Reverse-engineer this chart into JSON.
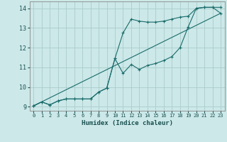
{
  "xlabel": "Humidex (Indice chaleur)",
  "bg_color": "#cce8e8",
  "grid_color": "#aacccc",
  "line_color": "#1a6b6b",
  "xlim": [
    -0.5,
    23.5
  ],
  "ylim": [
    8.8,
    14.35
  ],
  "xticks": [
    0,
    1,
    2,
    3,
    4,
    5,
    6,
    7,
    8,
    9,
    10,
    11,
    12,
    13,
    14,
    15,
    16,
    17,
    18,
    19,
    20,
    21,
    22,
    23
  ],
  "yticks": [
    9,
    10,
    11,
    12,
    13,
    14
  ],
  "line1_x": [
    0,
    1,
    2,
    3,
    4,
    5,
    6,
    7,
    8,
    9,
    10,
    11,
    12,
    13,
    14,
    15,
    16,
    17,
    18,
    19,
    20,
    21,
    22,
    23
  ],
  "line1_y": [
    9.05,
    9.25,
    9.1,
    9.3,
    9.4,
    9.4,
    9.4,
    9.4,
    9.75,
    9.95,
    11.45,
    12.75,
    13.45,
    13.35,
    13.3,
    13.3,
    13.35,
    13.45,
    13.55,
    13.6,
    14.0,
    14.05,
    14.05,
    13.75
  ],
  "line2_x": [
    0,
    1,
    2,
    3,
    4,
    5,
    6,
    7,
    8,
    9,
    10,
    11,
    12,
    13,
    14,
    15,
    16,
    17,
    18,
    19,
    20,
    21,
    22,
    23
  ],
  "line2_y": [
    9.05,
    9.25,
    9.1,
    9.3,
    9.4,
    9.4,
    9.4,
    9.4,
    9.75,
    9.95,
    11.45,
    10.7,
    11.15,
    10.9,
    11.1,
    11.2,
    11.35,
    11.55,
    12.0,
    13.05,
    14.0,
    14.05,
    14.05,
    14.05
  ],
  "line3_x": [
    0,
    23
  ],
  "line3_y": [
    9.05,
    13.75
  ]
}
